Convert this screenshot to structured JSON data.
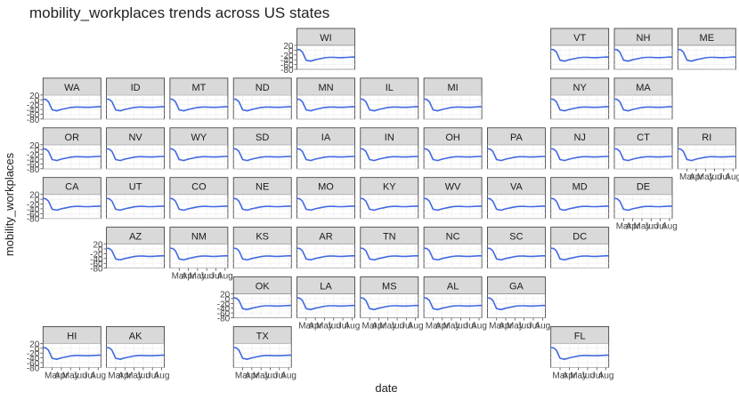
{
  "chart_data": {
    "type": "line",
    "title": "mobility_workplaces trends across US states",
    "xlabel": "date",
    "ylabel": "mobility_workplaces",
    "ylim": [
      -80,
      20
    ],
    "y_ticks": [
      20,
      0,
      -20,
      -40,
      -60,
      -80
    ],
    "y_tick_labels": [
      "20",
      "0",
      "-20",
      "-40",
      "-60",
      "-80"
    ],
    "x_tick_labels": [
      "Mar",
      "Apr",
      "May",
      "Jun",
      "Jul",
      "Aug"
    ],
    "grid": true,
    "line_color": "#4169e1",
    "strip_color": "#d9d9d9",
    "states": [
      {
        "name": "WI",
        "row": 0,
        "col": 5
      },
      {
        "name": "VT",
        "row": 0,
        "col": 9
      },
      {
        "name": "NH",
        "row": 0,
        "col": 10
      },
      {
        "name": "ME",
        "row": 0,
        "col": 11
      },
      {
        "name": "WA",
        "row": 1,
        "col": 1
      },
      {
        "name": "ID",
        "row": 1,
        "col": 2
      },
      {
        "name": "MT",
        "row": 1,
        "col": 3
      },
      {
        "name": "ND",
        "row": 1,
        "col": 4
      },
      {
        "name": "MN",
        "row": 1,
        "col": 5
      },
      {
        "name": "IL",
        "row": 1,
        "col": 6
      },
      {
        "name": "MI",
        "row": 1,
        "col": 7
      },
      {
        "name": "NY",
        "row": 1,
        "col": 9
      },
      {
        "name": "MA",
        "row": 1,
        "col": 10
      },
      {
        "name": "OR",
        "row": 2,
        "col": 1
      },
      {
        "name": "NV",
        "row": 2,
        "col": 2
      },
      {
        "name": "WY",
        "row": 2,
        "col": 3
      },
      {
        "name": "SD",
        "row": 2,
        "col": 4
      },
      {
        "name": "IA",
        "row": 2,
        "col": 5
      },
      {
        "name": "IN",
        "row": 2,
        "col": 6
      },
      {
        "name": "OH",
        "row": 2,
        "col": 7
      },
      {
        "name": "PA",
        "row": 2,
        "col": 8
      },
      {
        "name": "NJ",
        "row": 2,
        "col": 9
      },
      {
        "name": "CT",
        "row": 2,
        "col": 10
      },
      {
        "name": "RI",
        "row": 2,
        "col": 11
      },
      {
        "name": "CA",
        "row": 3,
        "col": 1
      },
      {
        "name": "UT",
        "row": 3,
        "col": 2
      },
      {
        "name": "CO",
        "row": 3,
        "col": 3
      },
      {
        "name": "NE",
        "row": 3,
        "col": 4
      },
      {
        "name": "MO",
        "row": 3,
        "col": 5
      },
      {
        "name": "KY",
        "row": 3,
        "col": 6
      },
      {
        "name": "WV",
        "row": 3,
        "col": 7
      },
      {
        "name": "VA",
        "row": 3,
        "col": 8
      },
      {
        "name": "MD",
        "row": 3,
        "col": 9
      },
      {
        "name": "DE",
        "row": 3,
        "col": 10
      },
      {
        "name": "AZ",
        "row": 4,
        "col": 2
      },
      {
        "name": "NM",
        "row": 4,
        "col": 3
      },
      {
        "name": "KS",
        "row": 4,
        "col": 4
      },
      {
        "name": "AR",
        "row": 4,
        "col": 5
      },
      {
        "name": "TN",
        "row": 4,
        "col": 6
      },
      {
        "name": "NC",
        "row": 4,
        "col": 7
      },
      {
        "name": "SC",
        "row": 4,
        "col": 8
      },
      {
        "name": "DC",
        "row": 4,
        "col": 9
      },
      {
        "name": "OK",
        "row": 5,
        "col": 4
      },
      {
        "name": "LA",
        "row": 5,
        "col": 5
      },
      {
        "name": "MS",
        "row": 5,
        "col": 6
      },
      {
        "name": "AL",
        "row": 5,
        "col": 7
      },
      {
        "name": "GA",
        "row": 5,
        "col": 8
      },
      {
        "name": "HI",
        "row": 6,
        "col": 1
      },
      {
        "name": "AK",
        "row": 6,
        "col": 2
      },
      {
        "name": "TX",
        "row": 6,
        "col": 4
      },
      {
        "name": "FL",
        "row": 6,
        "col": 9
      }
    ],
    "trend_shape": {
      "months": [
        "Mar",
        "Apr",
        "May",
        "Jun",
        "Jul",
        "Aug"
      ],
      "points": [
        {
          "month": 2.0,
          "value": 3
        },
        {
          "month": 2.3,
          "value": 2
        },
        {
          "month": 2.6,
          "value": -8
        },
        {
          "month": 3.0,
          "value": -42
        },
        {
          "month": 3.5,
          "value": -46
        },
        {
          "month": 4.0,
          "value": -40
        },
        {
          "month": 4.5,
          "value": -36
        },
        {
          "month": 5.0,
          "value": -32
        },
        {
          "month": 5.5,
          "value": -30
        },
        {
          "month": 6.0,
          "value": -30
        },
        {
          "month": 6.5,
          "value": -31
        },
        {
          "month": 7.0,
          "value": -31
        },
        {
          "month": 7.5,
          "value": -30
        },
        {
          "month": 8.0,
          "value": -29
        },
        {
          "month": 8.3,
          "value": -29
        }
      ]
    },
    "y_axis_states": [
      "WI",
      "WA",
      "OR",
      "CA",
      "AZ",
      "OK",
      "HI"
    ],
    "x_axis_states": [
      "RI",
      "DE",
      "NM",
      "LA",
      "MS",
      "AL",
      "GA",
      "HI",
      "AK",
      "TX",
      "FL"
    ]
  }
}
